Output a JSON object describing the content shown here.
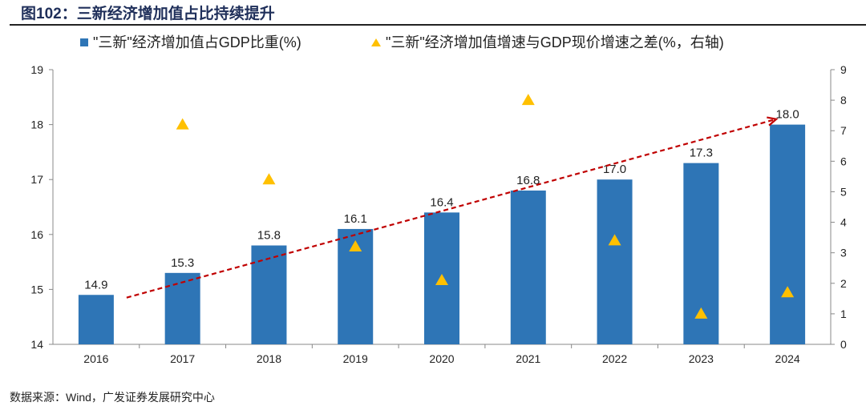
{
  "title": "图102：三新经济增加值占比持续提升",
  "source": "数据来源：Wind，广发证券发展研究中心",
  "chart_data": {
    "type": "bar",
    "categories": [
      "2016",
      "2017",
      "2018",
      "2019",
      "2020",
      "2021",
      "2022",
      "2023",
      "2024"
    ],
    "series": [
      {
        "name": "\"三新\"经济增加值占GDP比重(%)",
        "type": "bar",
        "axis": "left",
        "color": "#2e75b6",
        "values": [
          14.9,
          15.3,
          15.8,
          16.1,
          16.4,
          16.8,
          17.0,
          17.3,
          18.0
        ]
      },
      {
        "name": "\"三新\"经济增加值增速与GDP现价增速之差(%，右轴)",
        "type": "scatter",
        "marker": "triangle",
        "axis": "right",
        "color": "#ffc000",
        "values": [
          null,
          7.2,
          5.4,
          3.2,
          2.1,
          8.0,
          3.4,
          1.0,
          1.7
        ]
      }
    ],
    "data_labels": [
      "14.9",
      "15.3",
      "15.8",
      "16.1",
      "16.4",
      "16.8",
      "17.0",
      "17.3",
      "18.0"
    ],
    "ylim_left": [
      14,
      19
    ],
    "yticks_left": [
      "14",
      "15",
      "16",
      "17",
      "18",
      "19"
    ],
    "ylim_right": [
      0,
      9
    ],
    "yticks_right": [
      "0",
      "1",
      "2",
      "3",
      "4",
      "5",
      "6",
      "7",
      "8",
      "9"
    ],
    "trend_arrow": {
      "color": "#c00000",
      "style": "dashed",
      "from": [
        "2016",
        14.85
      ],
      "to": [
        "2024",
        18.1
      ]
    },
    "legend": "top",
    "grid": false
  }
}
